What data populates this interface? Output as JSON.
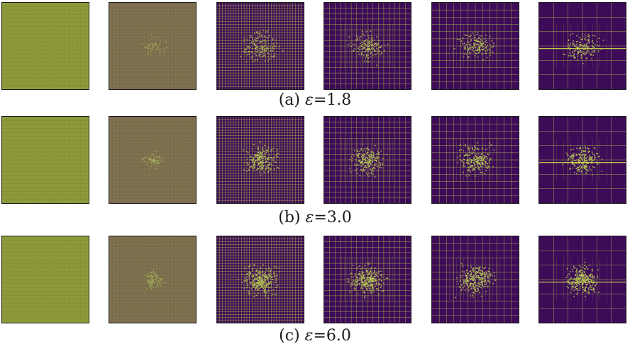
{
  "figure": {
    "rows": [
      {
        "caption": {
          "label": "(a)",
          "symbol": "ε",
          "relation": "=",
          "value": "1.8"
        },
        "scatter_density": 0.6,
        "panels": [
          {
            "grid_divisions": 22,
            "style": "flat"
          },
          {
            "grid_divisions": 64,
            "style": "fine"
          },
          {
            "grid_divisions": 32,
            "style": "purple"
          },
          {
            "grid_divisions": 16,
            "style": "adaptive"
          },
          {
            "grid_divisions": 12,
            "style": "adaptive"
          },
          {
            "grid_divisions": 6,
            "style": "coarse"
          }
        ]
      },
      {
        "caption": {
          "label": "(b)",
          "symbol": "ε",
          "relation": "=",
          "value": "3.0"
        },
        "scatter_density": 0.85,
        "panels": [
          {
            "grid_divisions": 22,
            "style": "flat"
          },
          {
            "grid_divisions": 64,
            "style": "fine"
          },
          {
            "grid_divisions": 32,
            "style": "purple"
          },
          {
            "grid_divisions": 16,
            "style": "adaptive"
          },
          {
            "grid_divisions": 12,
            "style": "adaptive"
          },
          {
            "grid_divisions": 6,
            "style": "coarse"
          }
        ]
      },
      {
        "caption": {
          "label": "(c)",
          "symbol": "ε",
          "relation": "=",
          "value": "6.0"
        },
        "scatter_density": 1.1,
        "panels": [
          {
            "grid_divisions": 22,
            "style": "flat"
          },
          {
            "grid_divisions": 64,
            "style": "fine"
          },
          {
            "grid_divisions": 32,
            "style": "purple"
          },
          {
            "grid_divisions": 16,
            "style": "adaptive"
          },
          {
            "grid_divisions": 12,
            "style": "adaptive"
          },
          {
            "grid_divisions": 6,
            "style": "coarse"
          }
        ]
      }
    ]
  },
  "colors": {
    "background_dark": "#3d0b58",
    "background_flat": "#8e9a3a",
    "background_fine": "#756848",
    "grid_line": "#a9b64a",
    "grid_line_bright": "#d4e04a",
    "point": "#b5c955",
    "border": "#1a1a1a"
  }
}
